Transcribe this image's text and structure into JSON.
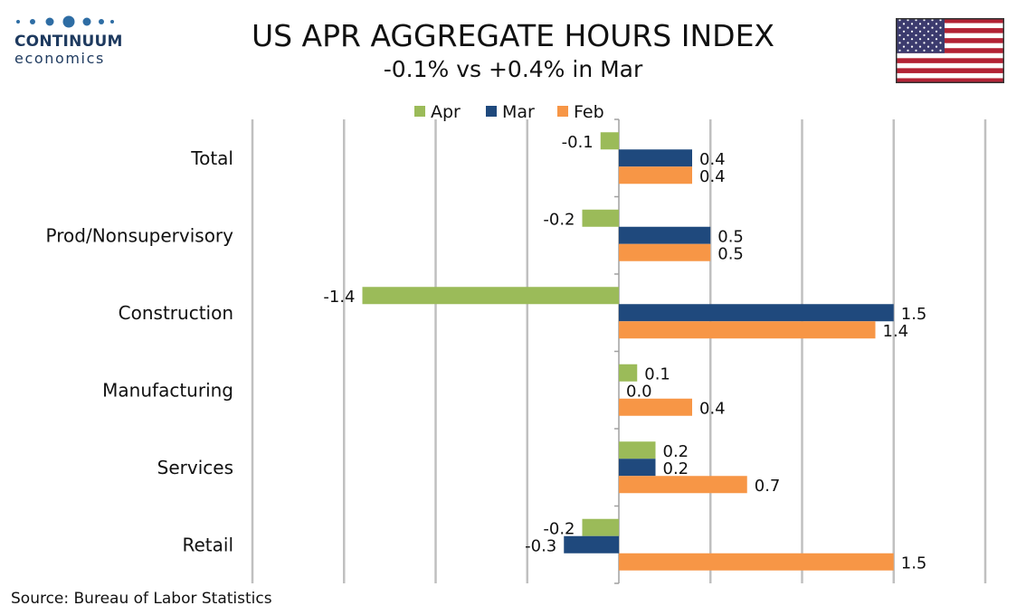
{
  "header": {
    "logo_name": "CONTINUUM",
    "logo_sub": "economics",
    "title": "US APR AGGREGATE HOURS INDEX",
    "subtitle": "-0.1% vs +0.4% in Mar"
  },
  "footer": {
    "source": "Source: Bureau of Labor Statistics"
  },
  "chart_data": {
    "type": "bar",
    "orientation": "horizontal",
    "categories": [
      "Total",
      "Prod/Nonsupervisory",
      "Construction",
      "Manufacturing",
      "Services",
      "Retail"
    ],
    "series": [
      {
        "name": "Apr",
        "color": "#9bbb59",
        "values": [
          -0.1,
          -0.2,
          -1.4,
          0.1,
          0.2,
          -0.2
        ],
        "labels": [
          "-0.1",
          "-0.2",
          "-1.4",
          "0.1",
          "0.2",
          "-0.2"
        ]
      },
      {
        "name": "Mar",
        "color": "#1f497d",
        "values": [
          0.4,
          0.5,
          1.5,
          0.0,
          0.2,
          -0.3
        ],
        "labels": [
          "0.4",
          "0.5",
          "1.5",
          "0.0",
          "0.2",
          "-0.3"
        ]
      },
      {
        "name": "Feb",
        "color": "#f79646",
        "values": [
          0.4,
          0.5,
          1.4,
          0.4,
          0.7,
          1.5
        ],
        "labels": [
          "0.4",
          "0.5",
          "1.4",
          "0.4",
          "0.7",
          "1.5"
        ]
      }
    ],
    "xlim": [
      -2.0,
      2.0
    ],
    "grid": true,
    "legend_position": "top"
  }
}
